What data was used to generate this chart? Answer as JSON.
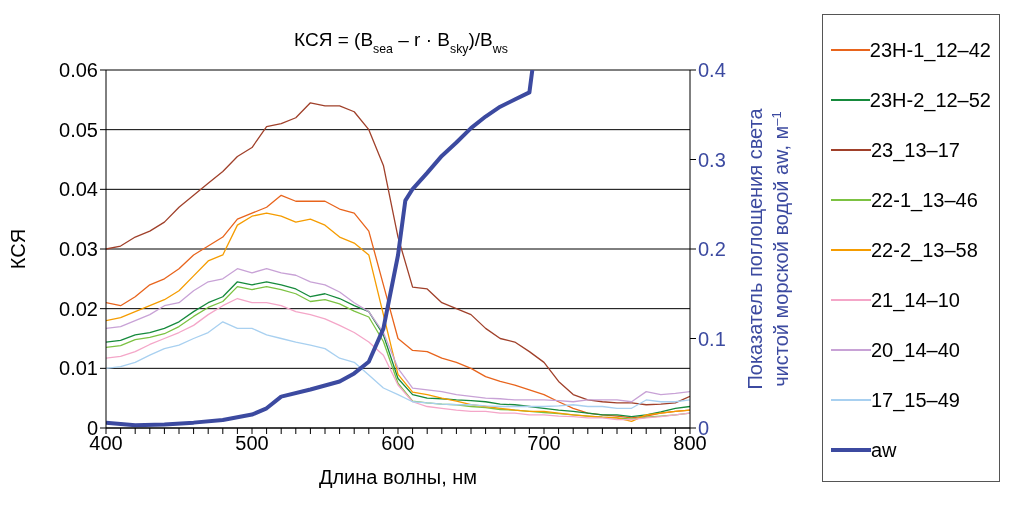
{
  "chart_data": {
    "type": "line",
    "title": "КСЯ = (B$_{sea}$ – r · B$_{sky}$)/B$_{ws}$",
    "xlabel": "Длина волны, нм",
    "ylabel": "КСЯ",
    "y2label": "Показатель поглощения света\nчистой морской водой  aw, м$^{–1}$",
    "x": [
      400,
      410,
      420,
      430,
      440,
      450,
      460,
      470,
      480,
      490,
      500,
      510,
      520,
      530,
      540,
      550,
      560,
      570,
      580,
      590,
      600,
      610,
      620,
      630,
      640,
      650,
      660,
      670,
      680,
      690,
      700,
      710,
      720,
      730,
      740,
      750,
      760,
      770,
      780,
      790,
      800
    ],
    "xlim": [
      400,
      800
    ],
    "xticks": [
      400,
      {
        "value": 410,
        "label": null
      },
      {
        "value": 420,
        "label": null
      },
      {
        "value": 430,
        "label": null
      },
      {
        "value": 440,
        "label": null
      },
      {
        "value": 450,
        "label": null
      },
      {
        "value": 460,
        "label": null
      },
      {
        "value": 470,
        "label": null
      },
      {
        "value": 480,
        "label": null
      },
      {
        "value": 490,
        "label": null
      },
      500,
      {
        "value": 510,
        "label": null
      },
      {
        "value": 520,
        "label": null
      },
      {
        "value": 530,
        "label": null
      },
      {
        "value": 540,
        "label": null
      },
      {
        "value": 550,
        "label": null
      },
      {
        "value": 560,
        "label": null
      },
      {
        "value": 570,
        "label": null
      },
      {
        "value": 580,
        "label": null
      },
      {
        "value": 590,
        "label": null
      },
      600,
      {
        "value": 610,
        "label": null
      },
      {
        "value": 620,
        "label": null
      },
      {
        "value": 630,
        "label": null
      },
      {
        "value": 640,
        "label": null
      },
      {
        "value": 650,
        "label": null
      },
      {
        "value": 660,
        "label": null
      },
      {
        "value": 670,
        "label": null
      },
      {
        "value": 680,
        "label": null
      },
      {
        "value": 690,
        "label": null
      },
      700,
      {
        "value": 710,
        "label": null
      },
      {
        "value": 720,
        "label": null
      },
      {
        "value": 730,
        "label": null
      },
      {
        "value": 740,
        "label": null
      },
      {
        "value": 750,
        "label": null
      },
      {
        "value": 760,
        "label": null
      },
      {
        "value": 770,
        "label": null
      },
      {
        "value": 780,
        "label": null
      },
      {
        "value": 790,
        "label": null
      },
      800
    ],
    "ylim": [
      0,
      0.06
    ],
    "yticks": [
      0,
      0.01,
      0.02,
      0.03,
      0.04,
      0.05,
      0.06
    ],
    "y2lim": [
      0,
      0.4
    ],
    "y2ticks": [
      0,
      0.1,
      0.2,
      0.3,
      0.4
    ],
    "grid": "y",
    "legend": "right",
    "marker": "none",
    "line_style": "solid",
    "series": [
      {
        "name": "23Н-1_12–42",
        "color": "#e8641c",
        "values": [
          0.021,
          0.0205,
          0.022,
          0.024,
          0.025,
          0.0267,
          0.029,
          0.0305,
          0.032,
          0.035,
          0.036,
          0.037,
          0.039,
          0.038,
          0.038,
          0.038,
          0.0367,
          0.036,
          0.033,
          0.024,
          0.015,
          0.013,
          0.0128,
          0.0117,
          0.011,
          0.01,
          0.0086,
          0.0078,
          0.0072,
          0.0064,
          0.0056,
          0.0044,
          0.0033,
          0.0025,
          0.0022,
          0.002,
          0.0017,
          0.002,
          0.0025,
          0.0028,
          0.003
        ]
      },
      {
        "name": "23Н-2_12–52",
        "color": "#168a3c",
        "values": [
          0.0144,
          0.0147,
          0.0156,
          0.016,
          0.0167,
          0.0178,
          0.0195,
          0.021,
          0.022,
          0.0245,
          0.024,
          0.0245,
          0.024,
          0.0233,
          0.022,
          0.0225,
          0.0217,
          0.0205,
          0.0195,
          0.0156,
          0.0083,
          0.0056,
          0.005,
          0.0049,
          0.0047,
          0.0046,
          0.0044,
          0.004,
          0.0039,
          0.0036,
          0.0033,
          0.003,
          0.0028,
          0.0025,
          0.0022,
          0.0022,
          0.0019,
          0.0022,
          0.0027,
          0.0033,
          0.0036
        ]
      },
      {
        "name": "23_13–17",
        "color": "#a0402a",
        "values": [
          0.03,
          0.0305,
          0.032,
          0.033,
          0.0345,
          0.037,
          0.039,
          0.041,
          0.043,
          0.0455,
          0.047,
          0.0505,
          0.051,
          0.052,
          0.0545,
          0.054,
          0.054,
          0.053,
          0.05,
          0.044,
          0.032,
          0.0236,
          0.0233,
          0.021,
          0.02,
          0.019,
          0.0167,
          0.015,
          0.0144,
          0.0128,
          0.011,
          0.0078,
          0.0056,
          0.0047,
          0.0044,
          0.0042,
          0.0042,
          0.0039,
          0.004,
          0.0042,
          0.0053
        ]
      },
      {
        "name": "22-1_13–46",
        "color": "#7cc242",
        "values": [
          0.0135,
          0.0138,
          0.0148,
          0.0152,
          0.0158,
          0.017,
          0.0187,
          0.0202,
          0.0212,
          0.0237,
          0.0232,
          0.0237,
          0.0232,
          0.0225,
          0.0212,
          0.0215,
          0.0208,
          0.0196,
          0.0186,
          0.0145,
          0.0075,
          0.0045,
          0.0042,
          0.004,
          0.0039,
          0.0036,
          0.0034,
          0.0031,
          0.003,
          0.0028,
          0.0026,
          0.0024,
          0.0022,
          0.002,
          0.0018,
          0.0017,
          0.0015,
          0.0018,
          0.002,
          0.0022,
          0.0025
        ]
      },
      {
        "name": "22-2_13–58",
        "color": "#f59c00",
        "values": [
          0.018,
          0.0185,
          0.0195,
          0.0205,
          0.0215,
          0.023,
          0.0255,
          0.028,
          0.029,
          0.034,
          0.0355,
          0.036,
          0.0355,
          0.0345,
          0.035,
          0.034,
          0.032,
          0.031,
          0.029,
          0.019,
          0.009,
          0.006,
          0.0056,
          0.005,
          0.0045,
          0.0039,
          0.0036,
          0.0033,
          0.003,
          0.0028,
          0.0028,
          0.0025,
          0.0022,
          0.002,
          0.0018,
          0.0017,
          0.0011,
          0.0022,
          0.0025,
          0.0028,
          0.003
        ]
      },
      {
        "name": "21_14–10",
        "color": "#f4a6c8",
        "values": [
          0.0117,
          0.012,
          0.0128,
          0.014,
          0.015,
          0.016,
          0.0172,
          0.019,
          0.0205,
          0.0217,
          0.021,
          0.021,
          0.0205,
          0.0195,
          0.019,
          0.0183,
          0.0172,
          0.016,
          0.0144,
          0.0122,
          0.0072,
          0.0044,
          0.0036,
          0.0033,
          0.003,
          0.0028,
          0.0028,
          0.0025,
          0.0025,
          0.0022,
          0.0022,
          0.002,
          0.0019,
          0.0017,
          0.0017,
          0.0014,
          0.0014,
          0.0017,
          0.0019,
          0.0022,
          0.0025
        ]
      },
      {
        "name": "20_14–40",
        "color": "#c8a2d6",
        "values": [
          0.0167,
          0.017,
          0.018,
          0.019,
          0.0205,
          0.021,
          0.023,
          0.0245,
          0.025,
          0.0267,
          0.026,
          0.0267,
          0.026,
          0.0256,
          0.0245,
          0.024,
          0.0228,
          0.021,
          0.0195,
          0.016,
          0.01,
          0.0067,
          0.0064,
          0.0061,
          0.0056,
          0.0053,
          0.005,
          0.0049,
          0.0047,
          0.0047,
          0.0047,
          0.0046,
          0.0044,
          0.0047,
          0.0047,
          0.0047,
          0.0044,
          0.0061,
          0.0056,
          0.0058,
          0.0061
        ]
      },
      {
        "name": "17_15–49",
        "color": "#a8d0f0",
        "values": [
          0.01,
          0.0103,
          0.011,
          0.0122,
          0.0133,
          0.0139,
          0.015,
          0.016,
          0.0178,
          0.0167,
          0.0167,
          0.0156,
          0.015,
          0.0144,
          0.0139,
          0.0133,
          0.0117,
          0.011,
          0.0089,
          0.0067,
          0.0056,
          0.0044,
          0.0042,
          0.004,
          0.0039,
          0.0039,
          0.0037,
          0.0036,
          0.0036,
          0.0036,
          0.0036,
          0.0037,
          0.0039,
          0.0036,
          0.0036,
          0.0033,
          0.0033,
          0.0047,
          0.0044,
          0.0044,
          0.0047
        ]
      },
      {
        "name": "aw",
        "color": "#3c4aa0",
        "axis": "y2",
        "x": [
          400,
          420,
          440,
          460,
          480,
          500,
          510,
          520,
          540,
          560,
          570,
          580,
          590,
          600,
          605,
          610,
          620,
          630,
          640,
          650,
          660,
          670,
          680,
          690,
          692
        ],
        "values": [
          0.006,
          0.003,
          0.004,
          0.006,
          0.009,
          0.015,
          0.022,
          0.035,
          0.043,
          0.052,
          0.061,
          0.074,
          0.111,
          0.193,
          0.254,
          0.267,
          0.285,
          0.304,
          0.319,
          0.335,
          0.348,
          0.359,
          0.367,
          0.375,
          0.4
        ]
      }
    ]
  }
}
